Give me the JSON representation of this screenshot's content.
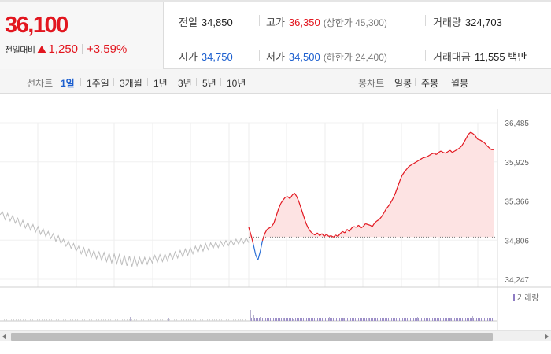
{
  "quote": {
    "current_price": "36,100",
    "change_label": "전일대비",
    "change_direction_icon": "up-triangle-icon",
    "change_amount": "1,250",
    "change_rate": "+3.59%"
  },
  "stats": {
    "prev_close_label": "전일",
    "prev_close": "34,850",
    "high_label": "고가",
    "high": "36,350",
    "upper_limit": "(상한가 45,300)",
    "volume_label": "거래량",
    "volume": "324,703",
    "open_label": "시가",
    "open": "34,750",
    "low_label": "저가",
    "low": "34,500",
    "lower_limit": "(하한가 24,400)",
    "trade_value_label": "거래대금",
    "trade_value": "11,555 백만"
  },
  "tabs": {
    "line_chart_label": "선차트",
    "line_tabs": [
      "1일",
      "1주일",
      "3개월",
      "1년",
      "3년",
      "5년",
      "10년"
    ],
    "active_line_tab": "1일",
    "candle_chart_label": "봉차트",
    "candle_tabs": [
      "일봉",
      "주봉",
      "월봉"
    ]
  },
  "chart_data": {
    "type": "line",
    "title": "",
    "xlabel": "",
    "ylabel": "",
    "y_ticks": [
      36485,
      35925,
      35366,
      34806,
      34247
    ],
    "y_tick_labels": [
      "36,485",
      "35,925",
      "35,366",
      "34,806",
      "34,247"
    ],
    "ylim": [
      34247,
      36485
    ],
    "baseline": 34850,
    "volume_legend": "거래량",
    "series": [
      {
        "values": [
          35170,
          35210,
          35100,
          35190,
          35080,
          35160,
          35050,
          35120,
          35000,
          35090,
          34980,
          35060,
          34950,
          35030,
          34920,
          35000,
          34890,
          34970,
          34860,
          34930,
          34830,
          34900,
          34790,
          34870,
          34760,
          34820,
          34720,
          34790,
          34690,
          34760,
          34650,
          34720,
          34610,
          34700,
          34580,
          34680,
          34560,
          34660,
          34540,
          34640,
          34520,
          34630,
          34500,
          34620,
          34480,
          34610,
          34470,
          34600,
          34450,
          34590,
          34440,
          34580,
          34430,
          34570,
          34440,
          34560,
          34450,
          34560,
          34460,
          34570,
          34480,
          34590,
          34490,
          34600,
          34500,
          34610,
          34510,
          34620,
          34530,
          34640,
          34550,
          34660,
          34570,
          34680,
          34590,
          34700,
          34610,
          34720,
          34630,
          34740,
          34650,
          34760,
          34670,
          34770,
          34690,
          34780,
          34700,
          34790,
          34720,
          34800,
          34730,
          34810,
          34740,
          34820,
          34750,
          34830,
          34760,
          34840,
          34770
        ]
      },
      {
        "values": [
          34990,
          34880,
          34750,
          34600,
          34520,
          34640,
          34800,
          34900,
          34960,
          34980,
          35000,
          35050,
          35150,
          35250,
          35330,
          35380,
          35420,
          35430,
          35400,
          35450,
          35480,
          35430,
          35350,
          35250,
          35150,
          35050,
          34980,
          34930,
          34900,
          34880,
          34910,
          34870,
          34900,
          34860,
          34890,
          34860,
          34870,
          34850,
          34880,
          34860,
          34900,
          34930,
          34910,
          34960,
          34930,
          34980,
          35000,
          34990,
          35020,
          34980,
          35000,
          35040,
          35030,
          35020,
          35000,
          35050,
          35080,
          35100,
          35140,
          35190,
          35250,
          35290,
          35340,
          35400,
          35470,
          35560,
          35650,
          35730,
          35780,
          35820,
          35860,
          35880,
          35900,
          35920,
          35940,
          35960,
          35980,
          35990,
          36000,
          36020,
          36040,
          36050,
          36030,
          36060,
          36080,
          36060,
          36050,
          36070,
          36090,
          36060,
          36080,
          36100,
          36120,
          36150,
          36200,
          36260,
          36320,
          36350,
          36330,
          36300,
          36250,
          36240,
          36220,
          36200,
          36160,
          36130,
          36100,
          36100
        ]
      }
    ]
  }
}
